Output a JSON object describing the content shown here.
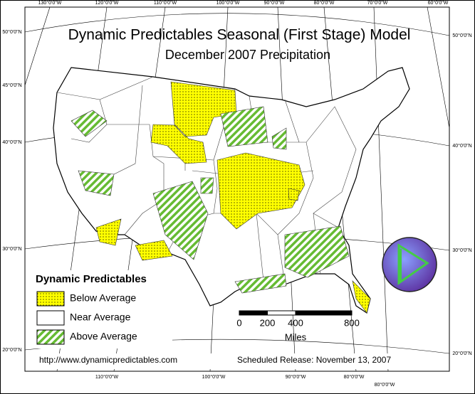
{
  "header": {
    "title": "Dynamic Predictables Seasonal (First Stage) Model",
    "subtitle": "December 2007 Precipitation"
  },
  "graticule": {
    "top": [
      "130°0'0\"W",
      "120°0'0\"W",
      "110°0'0\"W",
      "100°0'0\"W",
      "90°0'0\"W",
      "80°0'0\"W",
      "70°0'0\"W",
      "60°0'0\"W"
    ],
    "bottom": [
      "110°0'0\"W",
      "100°0'0\"W",
      "90°0'0\"W",
      "80°0'0\"W",
      "80°0'0\"W"
    ],
    "left": [
      "50°0'0\"N",
      "45°0'0\"N",
      "40°0'0\"N",
      "30°0'0\"N",
      "20°0'0\"N"
    ],
    "right": [
      "50°0'0\"N",
      "40°0'0\"N",
      "30°0'0\"N",
      "20°0'0\"N"
    ]
  },
  "legend": {
    "title": "Dynamic Predictables",
    "items": [
      "Below Average",
      "Near Average",
      "Above Average"
    ]
  },
  "scale_bar": {
    "ticks": [
      0,
      200,
      400,
      800
    ],
    "unit": "Miles"
  },
  "footer": {
    "url": "http://www.dynamicpredictables.com",
    "release": "Scheduled Release: November 13, 2007"
  }
}
